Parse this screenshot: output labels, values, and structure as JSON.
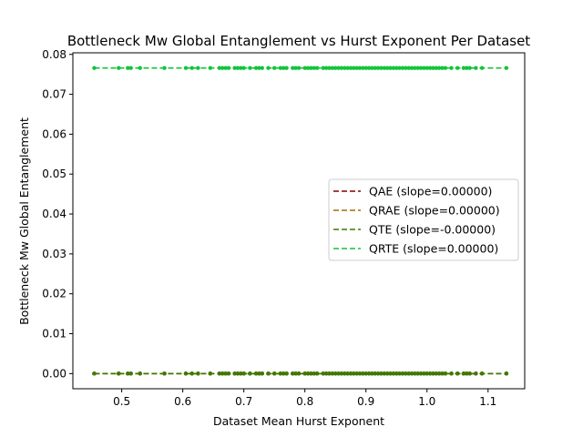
{
  "chart_data": {
    "type": "scatter",
    "title": "Bottleneck Mw Global Entanglement vs Hurst Exponent Per Dataset",
    "xlabel": "Dataset Mean Hurst Exponent",
    "ylabel": "Bottleneck Mw Global Entanglement",
    "xlim": [
      0.42,
      1.16
    ],
    "ylim": [
      -0.0038,
      0.0804
    ],
    "xticks": [
      0.5,
      0.6,
      0.7,
      0.8,
      0.9,
      1.0,
      1.1
    ],
    "xtick_labels": [
      "0.5",
      "0.6",
      "0.7",
      "0.8",
      "0.9",
      "1.0",
      "1.1"
    ],
    "yticks": [
      0.0,
      0.01,
      0.02,
      0.03,
      0.04,
      0.05,
      0.06,
      0.07,
      0.08
    ],
    "ytick_labels": [
      "0.00",
      "0.01",
      "0.02",
      "0.03",
      "0.04",
      "0.05",
      "0.06",
      "0.07",
      "0.08"
    ],
    "grid": false,
    "legend_position": "center-right",
    "x": [
      0.455,
      0.495,
      0.51,
      0.515,
      0.53,
      0.57,
      0.605,
      0.615,
      0.625,
      0.645,
      0.66,
      0.665,
      0.67,
      0.675,
      0.685,
      0.69,
      0.695,
      0.7,
      0.71,
      0.72,
      0.725,
      0.73,
      0.74,
      0.75,
      0.76,
      0.765,
      0.77,
      0.78,
      0.785,
      0.79,
      0.8,
      0.805,
      0.81,
      0.815,
      0.82,
      0.83,
      0.835,
      0.84,
      0.845,
      0.85,
      0.855,
      0.86,
      0.865,
      0.87,
      0.875,
      0.88,
      0.885,
      0.89,
      0.895,
      0.9,
      0.905,
      0.91,
      0.915,
      0.92,
      0.925,
      0.93,
      0.935,
      0.94,
      0.945,
      0.95,
      0.955,
      0.96,
      0.965,
      0.97,
      0.975,
      0.98,
      0.985,
      0.99,
      0.995,
      1.0,
      1.005,
      1.01,
      1.015,
      1.02,
      1.025,
      1.03,
      1.04,
      1.05,
      1.06,
      1.065,
      1.07,
      1.08,
      1.09,
      1.13
    ],
    "series": [
      {
        "name": "QAE (slope=0.00000)",
        "color": "#800000",
        "y_constant": 0.0
      },
      {
        "name": "QRAE (slope=0.00000)",
        "color": "#a07000",
        "y_constant": 0.0
      },
      {
        "name": "QTE (slope=-0.00000)",
        "color": "#3c7a00",
        "y_constant": 0.0
      },
      {
        "name": "QRTE (slope=0.00000)",
        "color": "#12c43a",
        "y_constant": 0.0766
      }
    ]
  }
}
